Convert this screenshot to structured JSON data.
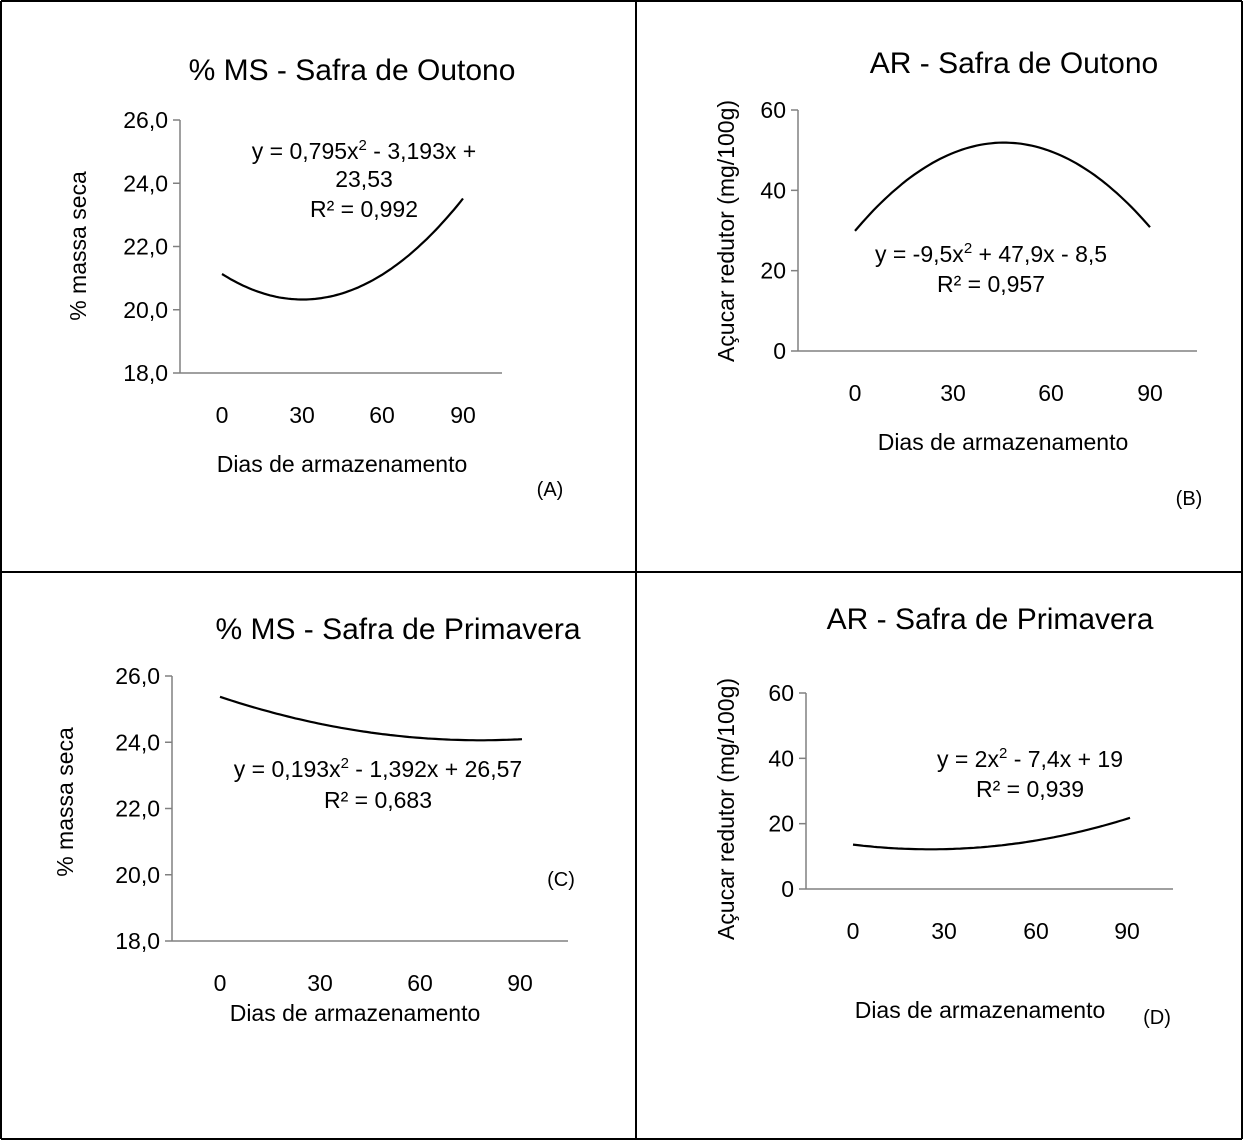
{
  "chart_data": [
    {
      "type": "line",
      "panel_label": "(A)",
      "title": "% MS - Safra de Outono",
      "xlabel": "Dias de armazenamento",
      "ylabel": "% massa seca",
      "categories": [
        "0",
        "30",
        "60",
        "90"
      ],
      "yticks": [
        "18,0",
        "20,0",
        "22,0",
        "24,0",
        "26,0"
      ],
      "ylim": [
        18,
        26
      ],
      "trendline": {
        "a": 0.795,
        "b": -3.193,
        "c": 23.53
      },
      "equation": {
        "prefix": "y = 0,795x",
        "power": "2",
        "rest": " - 3,193x +",
        "line2": "23,53",
        "r2": "R² = 0,992"
      },
      "legend": false,
      "grid": false
    },
    {
      "type": "line",
      "panel_label": "(B)",
      "title": "AR - Safra de Outono",
      "xlabel": "Dias de armazenamento",
      "ylabel": "Açucar redutor (mg/100g)",
      "categories": [
        "0",
        "30",
        "60",
        "90"
      ],
      "yticks": [
        "0",
        "20",
        "40",
        "60"
      ],
      "ylim": [
        0,
        60
      ],
      "trendline": {
        "a": -9.5,
        "b": 47.9,
        "c": -8.5
      },
      "equation": {
        "prefix": "y = -9,5x",
        "power": "2",
        "rest": " + 47,9x - 8,5",
        "r2": "R² = 0,957"
      },
      "legend": false,
      "grid": false
    },
    {
      "type": "line",
      "panel_label": "(C)",
      "title": "% MS - Safra de Primavera",
      "xlabel": "Dias de armazenamento",
      "ylabel": "% massa seca",
      "categories": [
        "0",
        "30",
        "60",
        "90"
      ],
      "yticks": [
        "18,0",
        "20,0",
        "22,0",
        "24,0",
        "26,0"
      ],
      "ylim": [
        18,
        26
      ],
      "trendline": {
        "a": 0.193,
        "b": -1.392,
        "c": 26.57
      },
      "equation": {
        "prefix": "y = 0,193x",
        "power": "2",
        "rest": " - 1,392x + 26,57",
        "r2": "R² = 0,683"
      },
      "legend": false,
      "grid": false
    },
    {
      "type": "line",
      "panel_label": "(D)",
      "title": "AR - Safra de Primavera",
      "xlabel": "Dias de armazenamento",
      "ylabel": "Açucar redutor (mg/100g)",
      "categories": [
        "0",
        "30",
        "60",
        "90"
      ],
      "yticks": [
        "0",
        "20",
        "40",
        "60"
      ],
      "ylim": [
        0,
        60
      ],
      "trendline": {
        "a": 2,
        "b": -7.4,
        "c": 19
      },
      "equation": {
        "prefix": "y = 2x",
        "power": "2",
        "rest": " - 7,4x + 19",
        "r2": "R² = 0,939"
      },
      "legend": false,
      "grid": false
    }
  ]
}
